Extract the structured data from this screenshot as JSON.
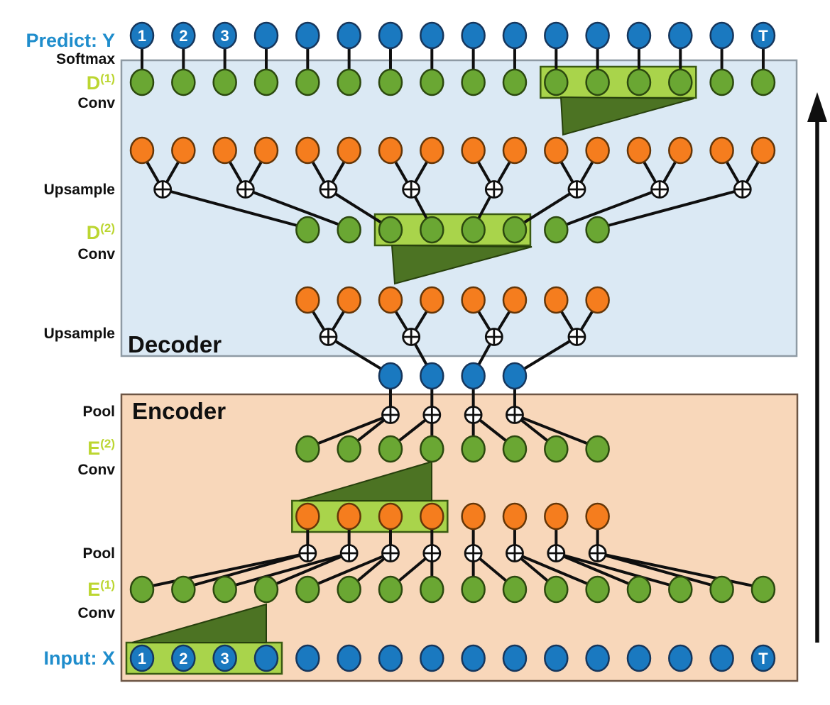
{
  "figure": {
    "description": "Encoder-Decoder temporal convolutional network diagram",
    "decoder_label": "Decoder",
    "encoder_label": "Encoder"
  },
  "labels": {
    "predict_y": "Predict: Y",
    "softmax": "Softmax",
    "d1": {
      "base": "D",
      "sup": "(1)"
    },
    "conv1": "Conv",
    "upsample1": "Upsample",
    "d2": {
      "base": "D",
      "sup": "(2)"
    },
    "conv2": "Conv",
    "upsample2": "Upsample",
    "decoder": "Decoder",
    "pool1": "Pool",
    "encoder": "Encoder",
    "e2": {
      "base": "E",
      "sup": "(2)"
    },
    "conv3": "Conv",
    "pool2": "Pool",
    "e1": {
      "base": "E",
      "sup": "(1)"
    },
    "conv4": "Conv",
    "input_x": "Input: X"
  },
  "rows": [
    {
      "name": "predict-row",
      "node_color": "blue",
      "count": 16,
      "node_labels": {
        "0": "1",
        "1": "2",
        "2": "3",
        "15": "T"
      }
    },
    {
      "name": "d1-row",
      "node_color": "green",
      "count": 16,
      "highlight_box": {
        "from": 10,
        "to": 13
      }
    },
    {
      "name": "decoder-upsample1-row",
      "node_color": "orange",
      "count": 16
    },
    {
      "name": "d2-row",
      "node_color": "green",
      "count": 8,
      "highlight_box": {
        "from": 2,
        "to": 5
      }
    },
    {
      "name": "decoder-upsample2-row",
      "node_color": "orange",
      "count": 8
    },
    {
      "name": "bottleneck-row",
      "node_color": "blue",
      "count": 4
    },
    {
      "name": "e2-row",
      "node_color": "green",
      "count": 8
    },
    {
      "name": "encoder-pooled-row",
      "node_color": "orange",
      "count": 8,
      "highlight_box": {
        "from": 0,
        "to": 3
      }
    },
    {
      "name": "e1-row",
      "node_color": "green",
      "count": 16
    },
    {
      "name": "input-row",
      "node_color": "blue",
      "count": 16,
      "highlight_box": {
        "from": 0,
        "to": 3
      },
      "node_labels": {
        "0": "1",
        "1": "2",
        "2": "3",
        "15": "T"
      }
    }
  ],
  "operators": [
    {
      "name": "upsample-sum-1",
      "symbol": "circled-plus",
      "count": 8
    },
    {
      "name": "upsample-sum-2",
      "symbol": "circled-plus",
      "count": 4
    },
    {
      "name": "pool-sum-1",
      "symbol": "circled-plus",
      "count": 4
    },
    {
      "name": "pool-sum-2",
      "symbol": "circled-plus",
      "count": 8
    }
  ],
  "arrow": {
    "name": "time-direction-arrow",
    "direction": "up"
  },
  "colors": {
    "decoder_bg": "#dbe9f4",
    "decoder_border": "#8e9aa4",
    "encoder_bg": "#f8d7ba",
    "encoder_border": "#6d5645",
    "node_blue": "#1a79c0",
    "node_blue_border": "#16365c",
    "node_green": "#6aa733",
    "node_green_border": "#2c490f",
    "node_orange": "#f57d1e",
    "node_orange_border": "#643608",
    "highlight_box_fill": "#a9d44b",
    "highlight_box_border": "#3a5a12",
    "triangle_fill": "#4c7323",
    "triangle_border": "#263f0c",
    "line": "#0f0f0f",
    "op_fill": "#ffffff",
    "label_blue": "#1f8dcc",
    "label_green": "#bcd631",
    "label_black": "#101010",
    "node_label_text": "#ffffff"
  }
}
